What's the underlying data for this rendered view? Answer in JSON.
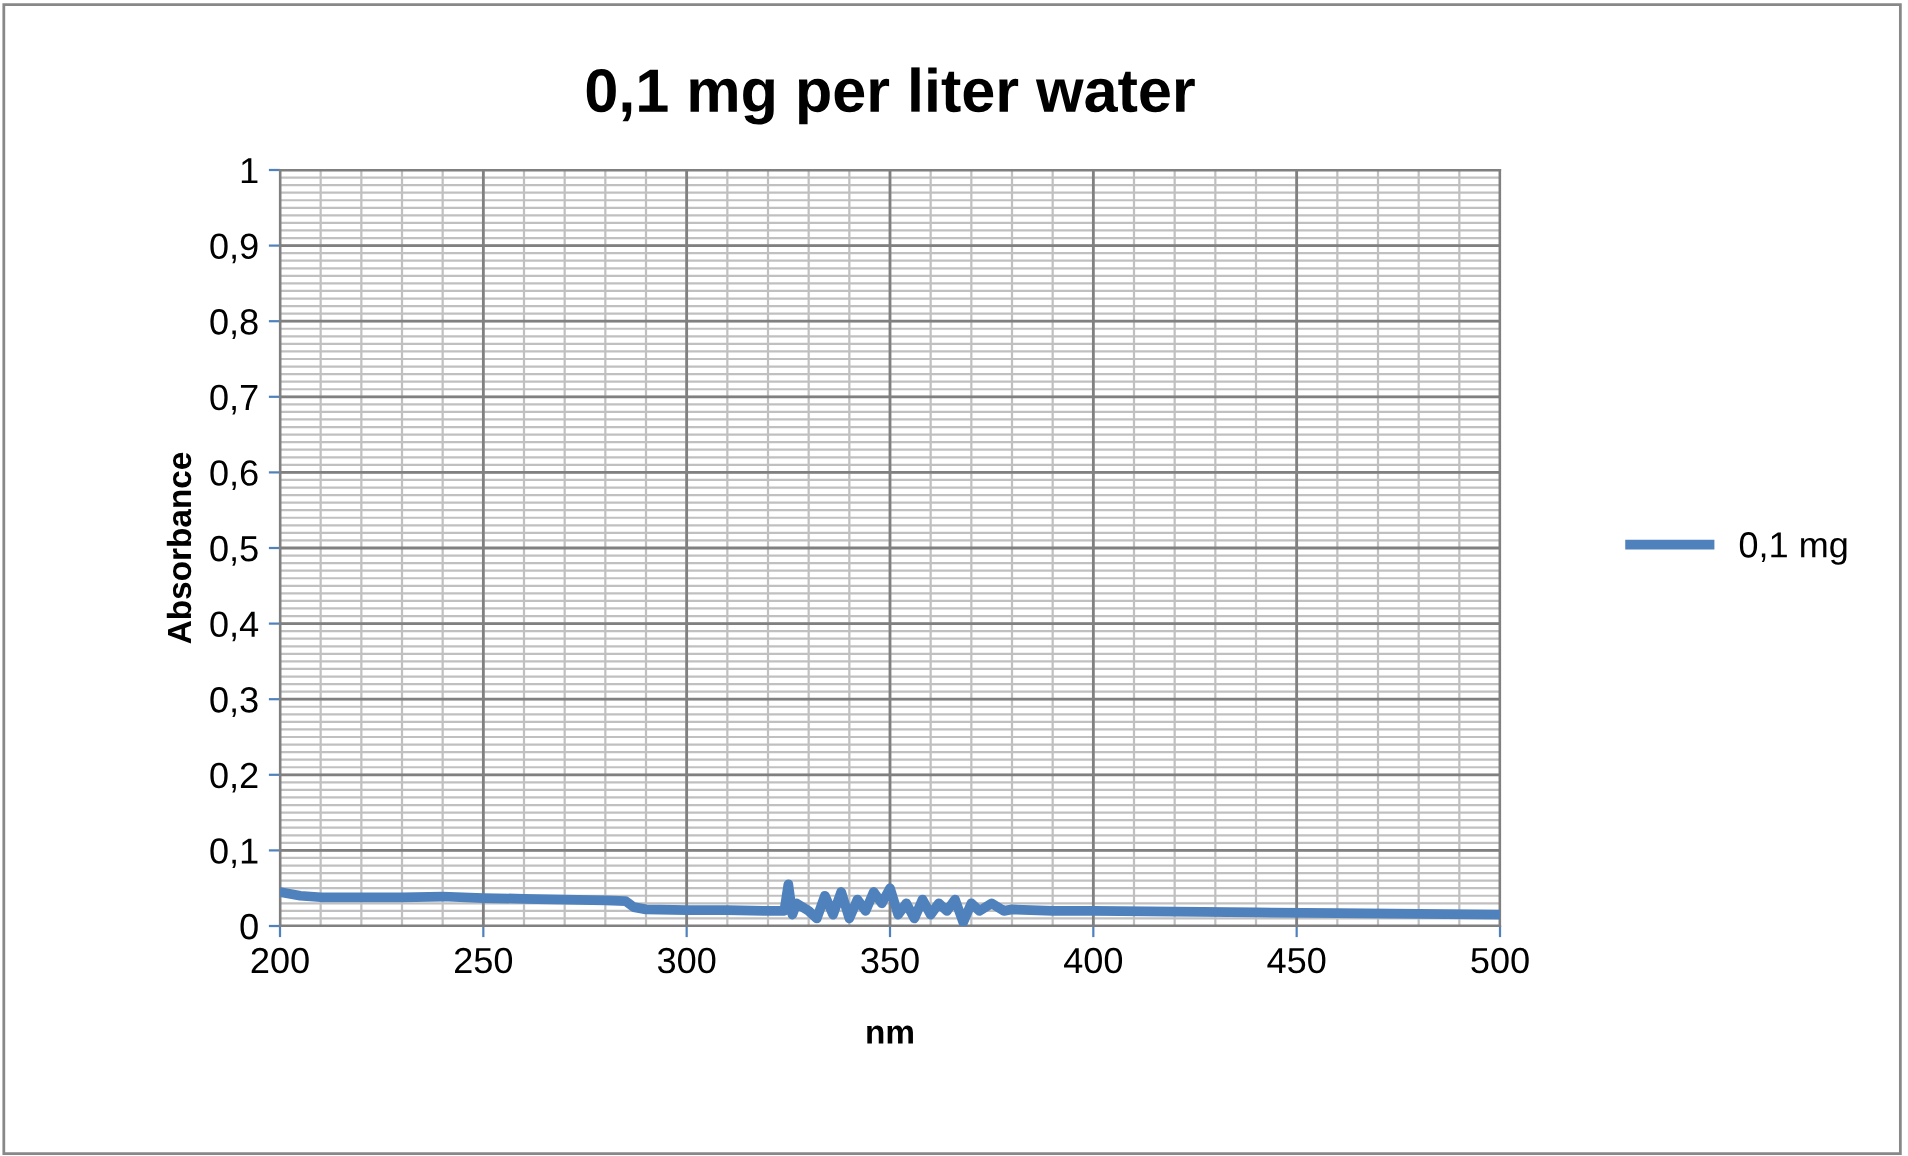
{
  "chart_data": {
    "type": "line",
    "title": "0,1 mg per liter water",
    "xlabel": "nm",
    "ylabel": "Absorbance",
    "xlim": [
      200,
      500
    ],
    "xticks": [
      200,
      250,
      300,
      350,
      400,
      450,
      500
    ],
    "ylim": [
      0,
      1
    ],
    "yticks": [
      0,
      {
        "value": 0.1,
        "label": "0,1"
      },
      {
        "value": 0.2,
        "label": "0,2"
      },
      {
        "value": 0.3,
        "label": "0,3"
      },
      {
        "value": 0.4,
        "label": "0,4"
      },
      {
        "value": 0.5,
        "label": "0,5"
      },
      {
        "value": 0.6,
        "label": "0,6"
      },
      {
        "value": 0.7,
        "label": "0,7"
      },
      {
        "value": 0.8,
        "label": "0,8"
      },
      {
        "value": 0.9,
        "label": "0,9"
      },
      1
    ],
    "grid": true,
    "legend": "right",
    "marker": "none",
    "line_style": "solid",
    "series": [
      {
        "name": "0,1 mg",
        "color": "#4f81bd",
        "x": [
          200,
          205,
          210,
          220,
          230,
          240,
          250,
          260,
          270,
          280,
          285,
          287,
          290,
          300,
          310,
          320,
          324,
          325,
          326,
          327,
          330,
          332,
          334,
          336,
          338,
          340,
          342,
          344,
          346,
          348,
          350,
          352,
          354,
          356,
          358,
          360,
          362,
          364,
          366,
          368,
          370,
          372,
          375,
          378,
          380,
          390,
          400,
          420,
          440,
          460,
          480,
          500
        ],
        "values": [
          0.045,
          0.04,
          0.038,
          0.038,
          0.038,
          0.039,
          0.037,
          0.036,
          0.035,
          0.034,
          0.033,
          0.025,
          0.022,
          0.021,
          0.021,
          0.02,
          0.02,
          0.055,
          0.015,
          0.03,
          0.02,
          0.01,
          0.04,
          0.015,
          0.045,
          0.01,
          0.035,
          0.02,
          0.045,
          0.03,
          0.05,
          0.015,
          0.03,
          0.01,
          0.035,
          0.015,
          0.03,
          0.02,
          0.035,
          0.005,
          0.03,
          0.02,
          0.03,
          0.02,
          0.022,
          0.02,
          0.02,
          0.019,
          0.018,
          0.017,
          0.016,
          0.015
        ]
      }
    ]
  }
}
